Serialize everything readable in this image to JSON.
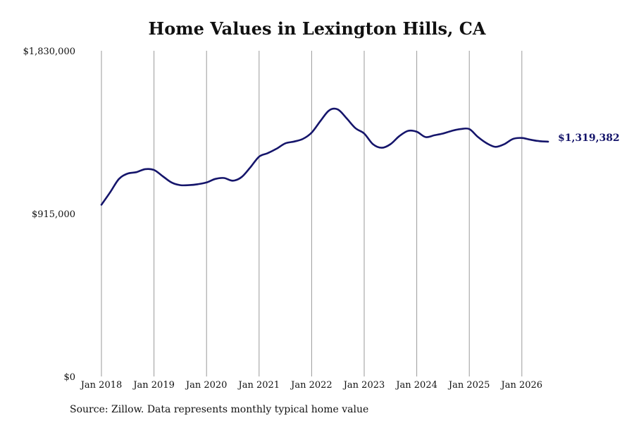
{
  "title": "Home Values in Lexington Hills, CA",
  "source_note": "Source: Zillow. Data represents monthly typical home value",
  "end_value_label": "$1,319,382",
  "colors": {
    "line": "#15156b",
    "grid": "#9a9a9a",
    "text": "#111111"
  },
  "chart_data": {
    "type": "line",
    "title": "Home Values in Lexington Hills, CA",
    "xlabel": "",
    "ylabel": "",
    "ylim": [
      0,
      1830000
    ],
    "y_ticks": [
      0,
      915000,
      1830000
    ],
    "y_tick_labels": [
      "$0",
      "$915,000",
      "$1,830,000"
    ],
    "x_ticks": [
      "2018-01",
      "2019-01",
      "2020-01",
      "2021-01",
      "2022-01",
      "2023-01",
      "2024-01",
      "2025-01",
      "2026-01"
    ],
    "x_tick_labels": [
      "Jan 2018",
      "Jan 2019",
      "Jan 2020",
      "Jan 2021",
      "Jan 2022",
      "Jan 2023",
      "Jan 2024",
      "Jan 2025",
      "Jan 2026"
    ],
    "grid": "vertical",
    "legend": "none",
    "series": [
      {
        "values": [
          [
            "2018-01",
            965000
          ],
          [
            "2018-03",
            1035000
          ],
          [
            "2018-05",
            1110000
          ],
          [
            "2018-07",
            1140000
          ],
          [
            "2018-09",
            1148000
          ],
          [
            "2018-11",
            1165000
          ],
          [
            "2019-01",
            1160000
          ],
          [
            "2019-03",
            1125000
          ],
          [
            "2019-05",
            1090000
          ],
          [
            "2019-07",
            1075000
          ],
          [
            "2019-09",
            1075000
          ],
          [
            "2019-11",
            1080000
          ],
          [
            "2020-01",
            1090000
          ],
          [
            "2020-03",
            1110000
          ],
          [
            "2020-05",
            1115000
          ],
          [
            "2020-07",
            1100000
          ],
          [
            "2020-09",
            1120000
          ],
          [
            "2020-11",
            1175000
          ],
          [
            "2021-01",
            1235000
          ],
          [
            "2021-03",
            1255000
          ],
          [
            "2021-05",
            1280000
          ],
          [
            "2021-07",
            1310000
          ],
          [
            "2021-09",
            1320000
          ],
          [
            "2021-11",
            1335000
          ],
          [
            "2022-01",
            1370000
          ],
          [
            "2022-03",
            1435000
          ],
          [
            "2022-05",
            1495000
          ],
          [
            "2022-07",
            1500000
          ],
          [
            "2022-09",
            1450000
          ],
          [
            "2022-11",
            1395000
          ],
          [
            "2023-01",
            1365000
          ],
          [
            "2023-03",
            1305000
          ],
          [
            "2023-05",
            1285000
          ],
          [
            "2023-07",
            1305000
          ],
          [
            "2023-09",
            1350000
          ],
          [
            "2023-11",
            1380000
          ],
          [
            "2024-01",
            1375000
          ],
          [
            "2024-03",
            1345000
          ],
          [
            "2024-05",
            1355000
          ],
          [
            "2024-07",
            1365000
          ],
          [
            "2024-09",
            1380000
          ],
          [
            "2024-11",
            1390000
          ],
          [
            "2025-01",
            1390000
          ],
          [
            "2025-03",
            1345000
          ],
          [
            "2025-05",
            1310000
          ],
          [
            "2025-07",
            1290000
          ],
          [
            "2025-09",
            1305000
          ],
          [
            "2025-11",
            1335000
          ],
          [
            "2026-01",
            1340000
          ],
          [
            "2026-03",
            1330000
          ],
          [
            "2026-05",
            1322000
          ],
          [
            "2026-07",
            1319382
          ]
        ]
      }
    ]
  }
}
